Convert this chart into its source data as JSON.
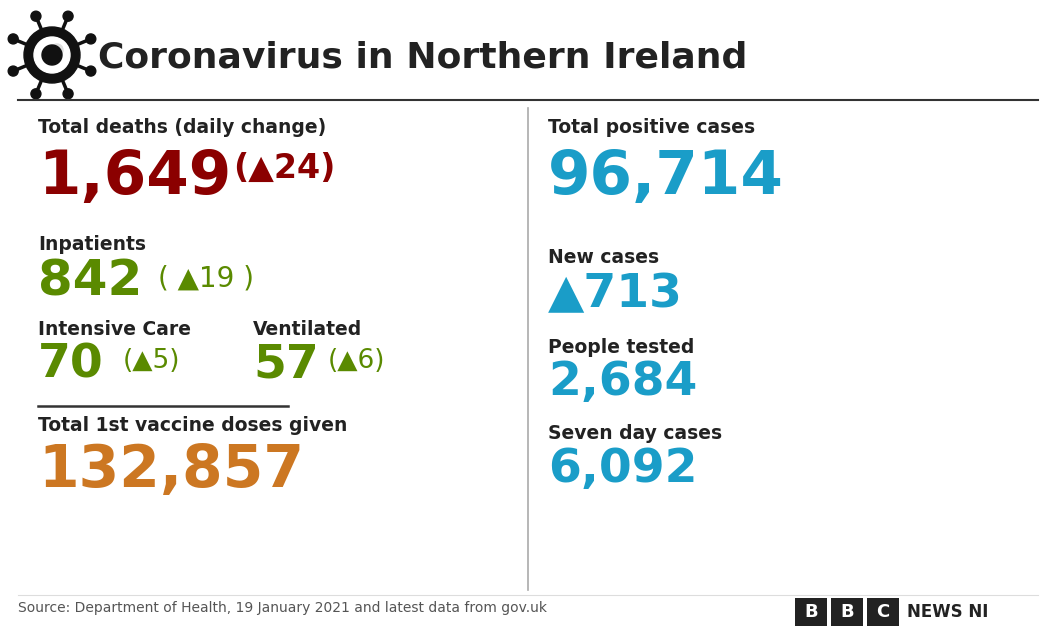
{
  "title": "Coronavirus in Northern Ireland",
  "bg_color": "#ffffff",
  "title_color": "#222222",
  "title_fontsize": 26,
  "left_panel": {
    "total_deaths_label": "Total deaths (daily change)",
    "total_deaths_value": "1,649",
    "total_deaths_change": "(▲24)",
    "total_deaths_value_color": "#8b0000",
    "total_deaths_change_color": "#8b0000",
    "inpatients_label": "Inpatients",
    "inpatients_value": "842",
    "inpatients_change": "( ▲19 )",
    "inpatients_value_color": "#5a8a00",
    "inpatients_change_color": "#5a8a00",
    "icu_label": "Intensive Care",
    "icu_value": "70",
    "icu_change": "(▲5)",
    "icu_value_color": "#5a8a00",
    "icu_change_color": "#5a8a00",
    "vent_label": "Ventilated",
    "vent_value": "57",
    "vent_change": "(▲6)",
    "vent_value_color": "#5a8a00",
    "vent_change_color": "#5a8a00",
    "vaccine_label": "Total 1st vaccine doses given",
    "vaccine_value": "132,857",
    "vaccine_value_color": "#cc7722"
  },
  "right_panel": {
    "total_cases_label": "Total positive cases",
    "total_cases_value": "96,714",
    "total_cases_value_color": "#1a9dc8",
    "new_cases_label": "New cases",
    "new_cases_value": "▲713",
    "new_cases_value_color": "#1a9dc8",
    "people_tested_label": "People tested",
    "people_tested_value": "2,684",
    "people_tested_value_color": "#1a9dc8",
    "seven_day_label": "Seven day cases",
    "seven_day_value": "6,092",
    "seven_day_value_color": "#1a9dc8"
  },
  "source_text": "Source: Department of Health, 19 January 2021 and latest data from gov.uk",
  "label_color": "#222222",
  "label_fontsize": 13.5,
  "divider_color": "#333333"
}
